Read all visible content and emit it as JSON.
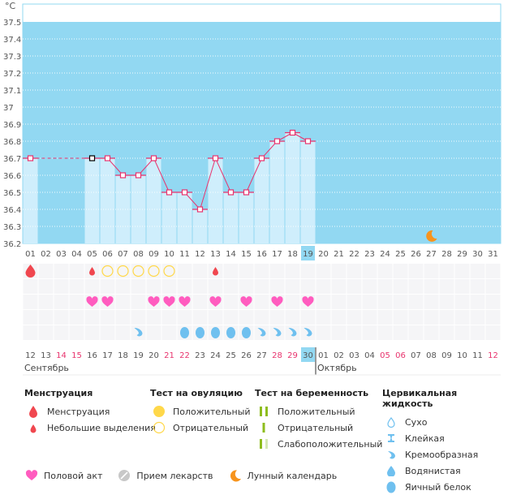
{
  "chart_data": {
    "type": "line",
    "unit_label": "°C",
    "ylim": [
      36.2,
      37.6
    ],
    "y_ticks": [
      "37.5",
      "37.4",
      "37.3",
      "37.2",
      "37.1",
      "37",
      "36.9",
      "36.8",
      "36.7",
      "36.6",
      "36.5",
      "36.4",
      "36.3",
      "36.2"
    ],
    "y_tick_values": [
      37.5,
      37.4,
      37.3,
      37.2,
      37.1,
      37.0,
      36.9,
      36.8,
      36.7,
      36.6,
      36.5,
      36.4,
      36.3,
      36.2
    ],
    "days": [
      "01",
      "02",
      "03",
      "04",
      "05",
      "06",
      "07",
      "08",
      "09",
      "10",
      "11",
      "12",
      "13",
      "14",
      "15",
      "16",
      "17",
      "18",
      "19",
      "20",
      "21",
      "22",
      "23",
      "24",
      "25",
      "26",
      "27",
      "28",
      "29",
      "30",
      "31"
    ],
    "selected_day_index": 18,
    "temperatures": [
      36.7,
      null,
      null,
      null,
      36.7,
      36.7,
      36.6,
      36.6,
      36.7,
      36.5,
      36.5,
      36.4,
      36.7,
      36.5,
      36.5,
      36.7,
      36.8,
      36.85,
      36.8,
      null,
      null,
      null,
      null,
      null,
      null,
      null,
      null,
      null,
      null,
      null,
      null
    ],
    "special_point_index": 4,
    "interpolated_gap": [
      0,
      4
    ],
    "moon_day_index": 26,
    "grid": true,
    "symbols": {
      "menstruation": [
        {
          "day": 0,
          "kind": "heavy"
        },
        {
          "day": 4,
          "kind": "light"
        },
        {
          "day": 12,
          "kind": "light"
        }
      ],
      "ovulation_test": [
        {
          "day": 5,
          "kind": "negative"
        },
        {
          "day": 6,
          "kind": "negative"
        },
        {
          "day": 7,
          "kind": "negative"
        },
        {
          "day": 8,
          "kind": "negative"
        },
        {
          "day": 9,
          "kind": "negative"
        }
      ],
      "intercourse": [
        4,
        5,
        8,
        9,
        10,
        12,
        14,
        16,
        18
      ],
      "cervical_fluid": [
        {
          "day": 7,
          "kind": "creamy"
        },
        {
          "day": 10,
          "kind": "eggwhite"
        },
        {
          "day": 11,
          "kind": "eggwhite"
        },
        {
          "day": 12,
          "kind": "eggwhite"
        },
        {
          "day": 13,
          "kind": "eggwhite"
        },
        {
          "day": 14,
          "kind": "eggwhite"
        },
        {
          "day": 15,
          "kind": "creamy"
        },
        {
          "day": 16,
          "kind": "creamy"
        },
        {
          "day": 17,
          "kind": "creamy"
        },
        {
          "day": 18,
          "kind": "creamy"
        }
      ]
    },
    "calendar_dates": [
      {
        "d": "12",
        "weekend": false
      },
      {
        "d": "13",
        "weekend": false
      },
      {
        "d": "14",
        "weekend": true
      },
      {
        "d": "15",
        "weekend": true
      },
      {
        "d": "16",
        "weekend": false
      },
      {
        "d": "17",
        "weekend": false
      },
      {
        "d": "18",
        "weekend": false
      },
      {
        "d": "19",
        "weekend": false
      },
      {
        "d": "20",
        "weekend": false
      },
      {
        "d": "21",
        "weekend": true
      },
      {
        "d": "22",
        "weekend": true
      },
      {
        "d": "23",
        "weekend": false
      },
      {
        "d": "24",
        "weekend": false
      },
      {
        "d": "25",
        "weekend": false
      },
      {
        "d": "26",
        "weekend": false
      },
      {
        "d": "27",
        "weekend": false
      },
      {
        "d": "28",
        "weekend": true
      },
      {
        "d": "29",
        "weekend": true
      },
      {
        "d": "30",
        "weekend": false
      },
      {
        "d": "01",
        "weekend": false
      },
      {
        "d": "02",
        "weekend": false
      },
      {
        "d": "03",
        "weekend": false
      },
      {
        "d": "04",
        "weekend": false
      },
      {
        "d": "05",
        "weekend": true
      },
      {
        "d": "06",
        "weekend": true
      },
      {
        "d": "07",
        "weekend": false
      },
      {
        "d": "08",
        "weekend": false
      },
      {
        "d": "09",
        "weekend": false
      },
      {
        "d": "10",
        "weekend": false
      },
      {
        "d": "11",
        "weekend": false
      },
      {
        "d": "12",
        "weekend": true
      }
    ],
    "months": [
      {
        "label": "Сентябрь",
        "start_index": 0
      },
      {
        "label": "Октябрь",
        "start_index": 19
      }
    ]
  },
  "colors": {
    "bg_luteal": "#92d8f2",
    "bar_fill": "#cfeefc",
    "line": "#e8336d",
    "selected": "#92d8f2",
    "weekend": "#e8336d",
    "blood": "#f0474f",
    "ovulation": "#ffd84a",
    "heart": "#ff5cbf",
    "fluid": "#6fc0ef",
    "moon": "#f7941d",
    "pregnancy": "#8ebd1e",
    "pregnancy_weak": "#d6e8b5",
    "pill": "#c8c8c8"
  },
  "legend": {
    "menstruation": {
      "title": "Менструация",
      "items": [
        "Менструация",
        "Небольшие выделения"
      ]
    },
    "ovulation": {
      "title": "Тест на овуляцию",
      "items": [
        "Положительный",
        "Отрицательный"
      ]
    },
    "pregnancy": {
      "title": "Тест на беременность",
      "items": [
        "Положительный",
        "Отрицательный",
        "Слабоположительный"
      ]
    },
    "cervical": {
      "title": "Цервикальная жидкость",
      "items": [
        "Сухо",
        "Клейкая",
        "Кремообразная",
        "Водянистая",
        "Яичный белок"
      ]
    },
    "other": [
      "Половой акт",
      "Прием лекарств",
      "Лунный календарь"
    ]
  }
}
